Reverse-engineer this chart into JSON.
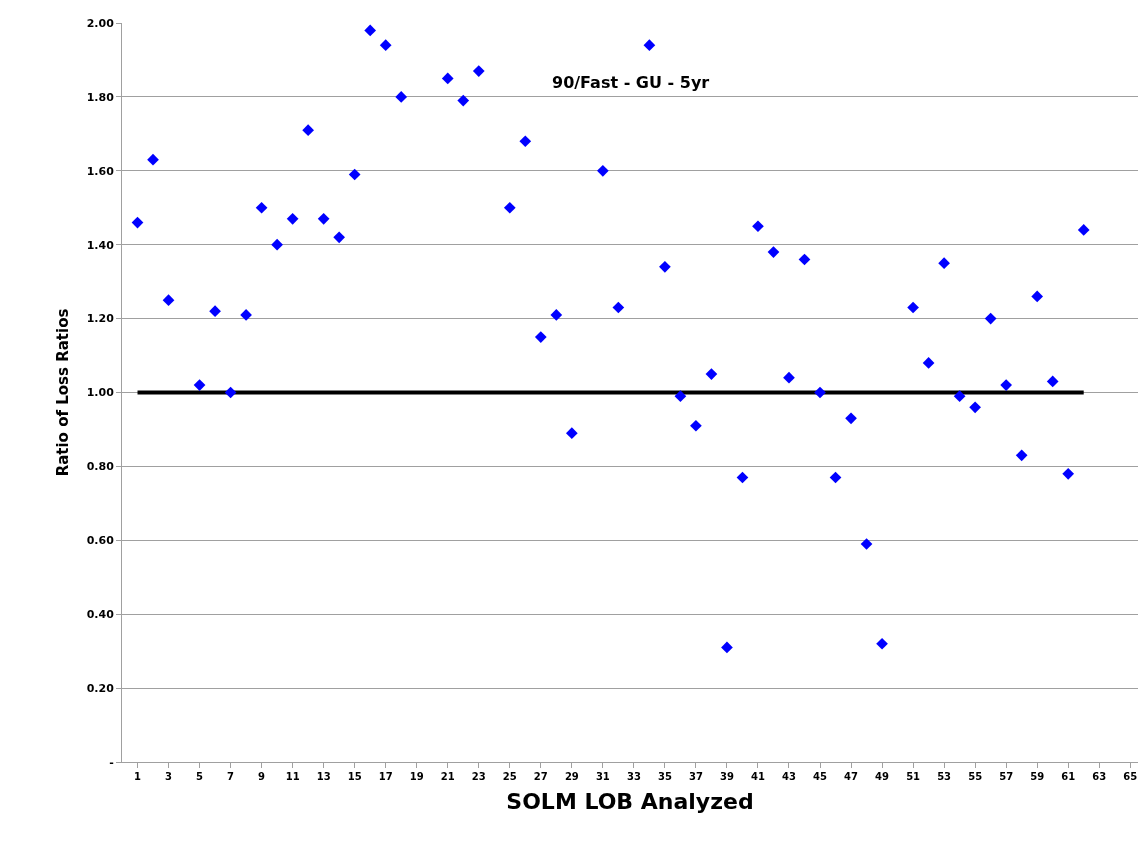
{
  "chart_data": {
    "type": "scatter",
    "xlabel": "SOLM LOB Analyzed",
    "ylabel": "Ratio of Loss Ratios",
    "annotations": [
      "90/Fast - GU - 5yr"
    ],
    "xlim": [
      0,
      65.5
    ],
    "xticks": [
      1,
      3,
      5,
      7,
      9,
      11,
      13,
      15,
      17,
      19,
      21,
      23,
      25,
      27,
      29,
      31,
      33,
      35,
      37,
      39,
      41,
      43,
      45,
      47,
      49,
      51,
      53,
      55,
      57,
      59,
      61,
      63,
      65
    ],
    "ylim": [
      0,
      2
    ],
    "yticks": [
      {
        "value": 0,
        "label": "-"
      },
      {
        "value": 0.2,
        "label": "0.20"
      },
      {
        "value": 0.4,
        "label": "0.40"
      },
      {
        "value": 0.6,
        "label": "0.60"
      },
      {
        "value": 0.8,
        "label": "0.80"
      },
      {
        "value": 1,
        "label": "1.00"
      },
      {
        "value": 1.2,
        "label": "1.20"
      },
      {
        "value": 1.4,
        "label": "1.40"
      },
      {
        "value": 1.6,
        "label": "1.60"
      },
      {
        "value": 1.8,
        "label": "1.80"
      },
      {
        "value": 2,
        "label": "2.00"
      }
    ],
    "grid": "y",
    "marker": "diamond",
    "series": [
      {
        "type": "line",
        "color": "#000000",
        "x": [
          1,
          62
        ],
        "values": [
          1,
          1
        ],
        "marker": "none"
      },
      {
        "color": "#0000ff",
        "x": [
          1,
          2,
          3,
          5,
          6,
          7,
          8,
          9,
          10,
          11,
          12,
          13,
          14,
          15,
          16,
          17,
          18,
          21,
          22,
          23,
          25,
          26,
          27,
          28,
          29,
          31,
          32,
          34,
          35,
          36,
          37,
          38,
          39,
          40,
          41,
          42,
          43,
          44,
          45,
          46,
          47,
          48,
          49,
          51,
          52,
          53,
          54,
          55,
          56,
          57,
          58,
          59,
          60,
          61,
          62
        ],
        "values": [
          1.46,
          1.63,
          1.25,
          1.02,
          1.22,
          1.0,
          1.21,
          1.5,
          1.4,
          1.47,
          1.71,
          1.47,
          1.42,
          1.59,
          1.98,
          1.94,
          1.8,
          1.85,
          1.79,
          1.87,
          1.5,
          1.68,
          1.15,
          1.21,
          0.89,
          1.6,
          1.23,
          1.94,
          1.34,
          0.99,
          0.91,
          1.05,
          0.31,
          0.77,
          1.45,
          1.38,
          1.04,
          1.36,
          1.0,
          0.77,
          0.93,
          0.59,
          0.32,
          1.23,
          1.08,
          1.35,
          0.99,
          0.96,
          1.2,
          1.02,
          0.83,
          1.26,
          1.03,
          0.78,
          1.44
        ]
      }
    ]
  }
}
